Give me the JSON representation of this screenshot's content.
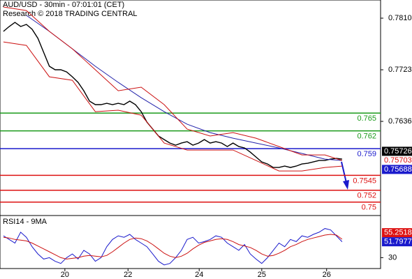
{
  "chart_data": [
    {
      "type": "line",
      "title": "AUD/USD - 30min - 07:01:01 (CET)",
      "subtitle": "Research © 2018 TRADING CENTRAL",
      "xlim": [
        -0.6,
        65.7
      ],
      "ylim": [
        0.74785,
        0.78406
      ],
      "yticks": [
        {
          "value": 0.781,
          "label": "0.7810"
        },
        0.7723,
        0.7636
      ],
      "x": [
        0,
        1,
        2,
        3,
        4,
        5,
        6,
        7,
        8,
        9,
        10,
        11,
        12,
        13,
        14,
        15,
        16,
        17,
        18,
        19,
        20,
        21,
        22,
        23,
        24,
        25,
        26,
        27,
        28,
        29,
        30,
        31,
        32,
        33,
        34,
        35,
        36,
        37,
        38,
        39,
        40,
        41,
        42,
        43,
        44,
        45,
        46,
        47,
        48,
        49,
        50,
        51,
        52,
        53,
        54,
        55,
        56,
        57,
        58,
        59
      ],
      "series": [
        {
          "color": "#000000",
          "values": [
            0.77877,
            0.77959,
            0.78029,
            0.77959,
            0.77994,
            0.77912,
            0.77759,
            0.77524,
            0.77289,
            0.7723,
            0.7723,
            0.77194,
            0.77112,
            0.77018,
            0.76877,
            0.76701,
            0.76642,
            0.76642,
            0.76665,
            0.76642,
            0.76665,
            0.76642,
            0.76701,
            0.76642,
            0.76524,
            0.76348,
            0.7623,
            0.76113,
            0.76054,
            0.75995,
            0.7596,
            0.75995,
            0.76018,
            0.7596,
            0.75995,
            0.76054,
            0.75995,
            0.76018,
            0.75995,
            0.75936,
            0.75995,
            0.75936,
            0.75913,
            0.75842,
            0.7576,
            0.75677,
            0.75642,
            0.75583,
            0.75583,
            0.75607,
            0.75583,
            0.75607,
            0.75642,
            0.75654,
            0.75677,
            0.75701,
            0.75701,
            0.75724,
            0.75736,
            0.75724
          ]
        },
        {
          "color": "#2222aa",
          "x": [
            4,
            8,
            12,
            16,
            20,
            24,
            28,
            32,
            36,
            40,
            44,
            48,
            52,
            56,
            59
          ],
          "values": [
            0.78147,
            0.77877,
            0.77583,
            0.77289,
            0.77018,
            0.76759,
            0.76524,
            0.76312,
            0.76171,
            0.76077,
            0.75995,
            0.75913,
            0.75819,
            0.75724,
            0.75701
          ]
        },
        {
          "color": "#cc1111",
          "x": [
            0,
            4,
            8,
            12,
            16,
            20,
            24,
            28,
            32,
            36,
            40,
            44,
            48,
            52,
            56,
            59
          ],
          "values": [
            0.78288,
            0.78229,
            0.77877,
            0.77583,
            0.7723,
            0.76877,
            0.76936,
            0.76642,
            0.7623,
            0.76113,
            0.76171,
            0.76077,
            0.75936,
            0.75795,
            0.75795,
            0.75701
          ]
        },
        {
          "color": "#cc1111",
          "x": [
            0,
            4,
            8,
            12,
            16,
            20,
            24,
            28,
            32,
            36,
            40,
            44,
            48,
            52,
            56,
            59
          ],
          "values": [
            0.777,
            0.77641,
            0.77112,
            0.77053,
            0.76524,
            0.76548,
            0.76465,
            0.75995,
            0.75877,
            0.75877,
            0.75877,
            0.75701,
            0.75525,
            0.75525,
            0.75583,
            0.75607
          ]
        }
      ],
      "levels": [
        {
          "value": 0.765,
          "color": "#1a9a1a"
        },
        {
          "value": 0.762,
          "color": "#1a9a1a"
        },
        {
          "value": 0.759,
          "color": "#1a1acc"
        },
        {
          "value": 0.7545,
          "color": "#dd1111"
        },
        {
          "value": 0.752,
          "color": "#dd1111"
        },
        {
          "value": 0.75,
          "color": "#dd1111"
        }
      ],
      "last_labels": [
        {
          "value": 0.75726,
          "color": "#000000",
          "boxed": true
        },
        {
          "value": 0.75703,
          "color": "#dd1111",
          "boxed": false
        },
        {
          "value": 0.75688,
          "color": "#1a1acc",
          "boxed": true
        }
      ]
    },
    {
      "type": "line",
      "title": "RSI14 - 9MA",
      "xlim": [
        -0.6,
        65.7
      ],
      "ylim": [
        15,
        85
      ],
      "yticks": [
        30
      ],
      "xticks": [
        {
          "value": 10.7,
          "label": "20"
        },
        {
          "value": 21.7,
          "label": "22"
        },
        {
          "value": 34.1,
          "label": "24"
        },
        {
          "value": 45,
          "label": "25"
        },
        {
          "value": 56.3,
          "label": "26"
        }
      ],
      "x": [
        0,
        1,
        2,
        3,
        4,
        5,
        6,
        7,
        8,
        9,
        10,
        11,
        12,
        13,
        14,
        15,
        16,
        17,
        18,
        19,
        20,
        21,
        22,
        23,
        24,
        25,
        26,
        27,
        28,
        29,
        30,
        31,
        32,
        33,
        34,
        35,
        36,
        37,
        38,
        39,
        40,
        41,
        42,
        43,
        44,
        45,
        46,
        47,
        48,
        49,
        50,
        51,
        52,
        53,
        54,
        55,
        56,
        57,
        58,
        59
      ],
      "series": [
        {
          "color": "#1a1acc",
          "values": [
            60,
            55,
            50,
            65,
            58,
            45,
            35,
            28,
            30,
            25,
            22,
            30,
            35,
            28,
            40,
            35,
            25,
            30,
            45,
            55,
            60,
            58,
            62,
            55,
            50,
            45,
            35,
            25,
            20,
            22,
            30,
            40,
            55,
            58,
            50,
            52,
            55,
            60,
            58,
            50,
            45,
            40,
            48,
            35,
            28,
            22,
            30,
            40,
            50,
            45,
            55,
            52,
            60,
            58,
            62,
            65,
            70,
            68,
            60,
            51.7977
          ]
        },
        {
          "color": "#cc1111",
          "values": [
            58,
            57,
            55,
            54,
            53,
            50,
            46,
            42,
            38,
            34,
            30,
            28,
            29,
            30,
            32,
            33,
            32,
            31,
            33,
            38,
            44,
            50,
            55,
            57,
            56,
            53,
            48,
            42,
            36,
            32,
            30,
            32,
            36,
            42,
            47,
            51,
            53,
            55,
            56,
            55,
            52,
            48,
            46,
            44,
            40,
            35,
            32,
            33,
            36,
            40,
            45,
            48,
            52,
            55,
            57,
            59,
            61,
            62,
            61,
            55.2518
          ]
        }
      ],
      "last_labels": [
        {
          "value": 55.2518,
          "color": "#dd1111",
          "boxed": true
        },
        {
          "value": 51.7977,
          "color": "#1a1acc",
          "boxed": true
        }
      ]
    }
  ]
}
